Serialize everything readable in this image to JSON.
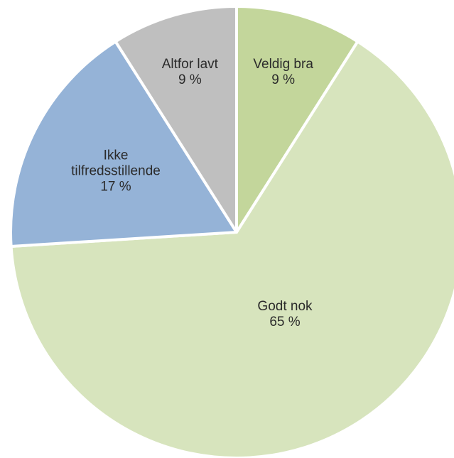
{
  "chart_data": {
    "type": "pie",
    "title": "",
    "start_angle_deg": 0,
    "direction": "clockwise",
    "slices": [
      {
        "label": "Veldig bra",
        "value": 9,
        "value_label": "9 %",
        "color": "#c3d69b"
      },
      {
        "label": "Godt nok",
        "value": 65,
        "value_label": "65 %",
        "color": "#d7e4bd"
      },
      {
        "label": "Ikke tilfredsstillende",
        "value": 17,
        "value_label": "17 %",
        "color": "#95b3d7"
      },
      {
        "label": "Altfor lavt",
        "value": 9,
        "value_label": "9 %",
        "color": "#bfbfbf"
      }
    ]
  }
}
